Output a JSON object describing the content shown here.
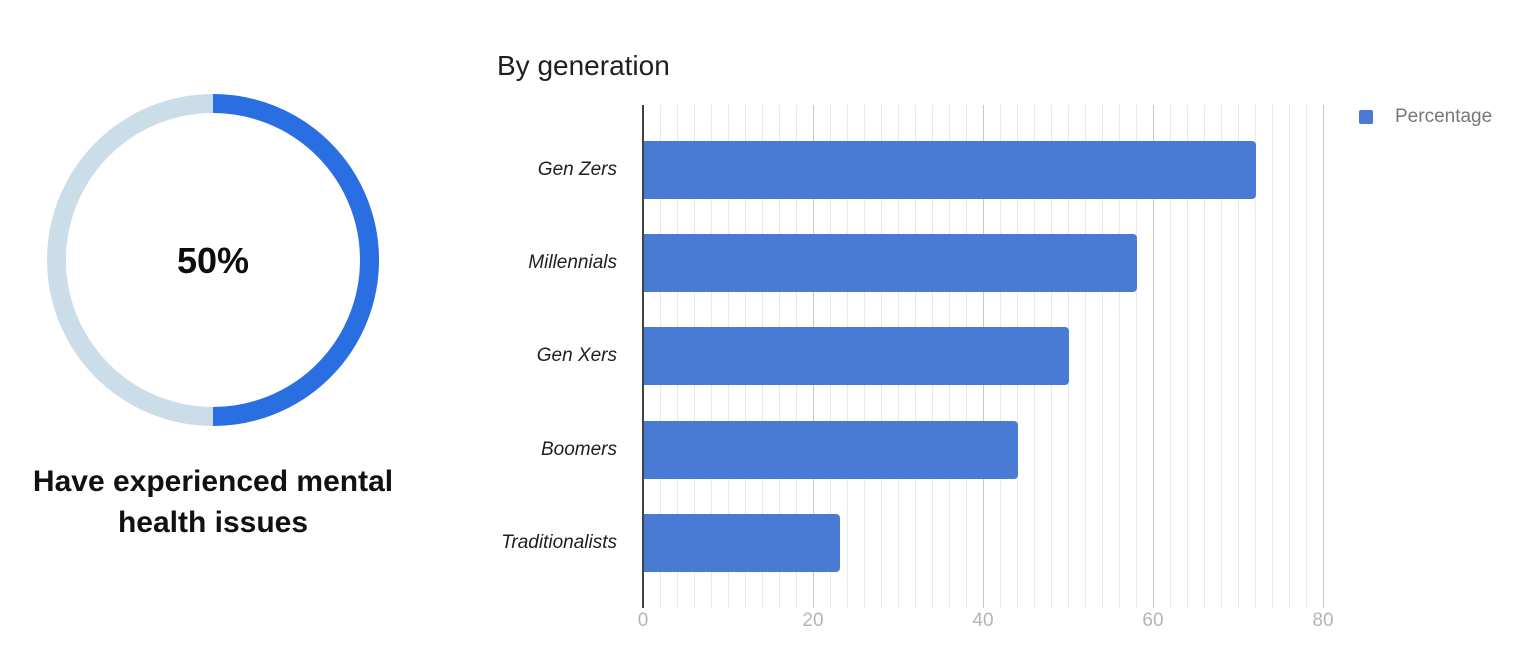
{
  "page": {
    "background": "#ffffff"
  },
  "donut": {
    "center_label": "50%",
    "caption_line1": "Have experienced mental",
    "caption_line2": "health issues",
    "filled_color": "#2a6fe2",
    "track_color": "#cbdde9"
  },
  "bar_chart": {
    "title": "By generation",
    "legend_label": "Percentage",
    "bar_color": "#4a7bd4",
    "axis_color": "#424242",
    "major_grid_color": "#c9c9c9",
    "minor_grid_color": "#e9e9e9",
    "tick_label_color": "#b5b5b5",
    "legend_text_color": "#75787b"
  },
  "chart_data": [
    {
      "type": "pie",
      "subtype": "donut",
      "title": "Have experienced mental health issues",
      "labels": [
        "Have experienced mental health issues",
        "Remainder"
      ],
      "values": [
        50,
        50
      ],
      "center_label": "50%",
      "colors": [
        "#2a6fe2",
        "#cbdde9"
      ],
      "start_angle_deg": 0,
      "legend": false
    },
    {
      "type": "bar",
      "orientation": "horizontal",
      "title": "By generation",
      "categories": [
        "Gen Zers",
        "Millennials",
        "Gen Xers",
        "Boomers",
        "Traditionalists"
      ],
      "series": [
        {
          "name": "Percentage",
          "values": [
            72,
            58,
            50,
            44,
            23
          ]
        }
      ],
      "xlim": [
        0,
        81
      ],
      "x_ticks": [
        0,
        20,
        40,
        60,
        80
      ],
      "minor_grid_step": 2,
      "grid": true,
      "legend_position": "top-right",
      "category_label_style": "italic"
    }
  ]
}
